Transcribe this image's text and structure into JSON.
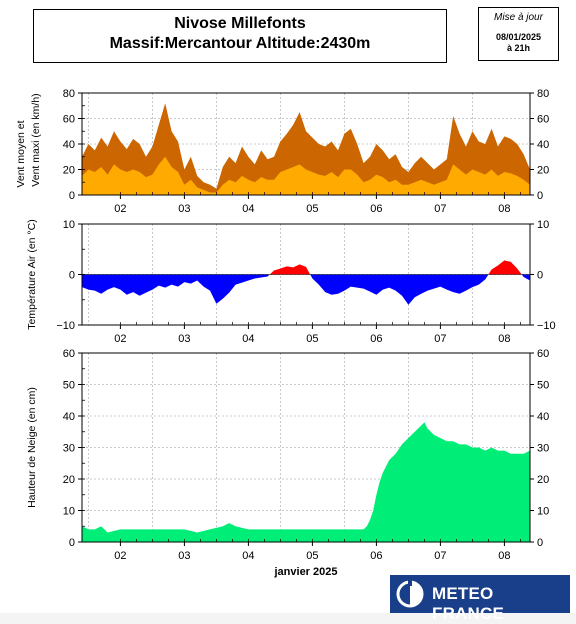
{
  "header": {
    "title_line1": "Nivose Millefonts",
    "title_line2": "Massif:Mercantour Altitude:2430m",
    "issue_label": "Mise à jour",
    "issue_date": "08/01/2025",
    "issue_hour": "à 21h"
  },
  "logo": {
    "text": "METEO FRANCE"
  },
  "colors": {
    "wind_max": "#cc6600",
    "wind_mean": "#ffaa00",
    "temp_positive": "#ff0000",
    "temp_negative": "#0000ff",
    "snow": "#00ee77"
  },
  "chart_data": [
    {
      "id": "wind",
      "type": "area",
      "ylabel_line1": "Vent moyen et",
      "ylabel_line2": "Vent maxi (en km/h)",
      "ylim": [
        0,
        80
      ],
      "yticks": [
        0,
        20,
        40,
        60,
        80
      ],
      "xlim": [
        1.4,
        8.4
      ],
      "x_ticks": [
        2,
        3,
        4,
        5,
        6,
        7,
        8
      ],
      "x_tick_labels": [
        "02",
        "03",
        "04",
        "05",
        "06",
        "07",
        "08"
      ],
      "xlabel": "",
      "grid": true,
      "series": [
        {
          "role": "max",
          "x": [
            1.4,
            1.5,
            1.6,
            1.7,
            1.8,
            1.9,
            2.0,
            2.1,
            2.2,
            2.3,
            2.4,
            2.5,
            2.6,
            2.7,
            2.8,
            2.9,
            3.0,
            3.1,
            3.2,
            3.3,
            3.4,
            3.5,
            3.6,
            3.7,
            3.8,
            3.9,
            4.0,
            4.1,
            4.2,
            4.3,
            4.4,
            4.5,
            4.6,
            4.7,
            4.8,
            4.9,
            5.0,
            5.1,
            5.2,
            5.3,
            5.4,
            5.5,
            5.6,
            5.7,
            5.8,
            5.9,
            6.0,
            6.1,
            6.2,
            6.3,
            6.4,
            6.5,
            6.6,
            6.7,
            6.8,
            6.9,
            7.0,
            7.1,
            7.2,
            7.3,
            7.4,
            7.5,
            7.6,
            7.7,
            7.8,
            7.9,
            8.0,
            8.1,
            8.2,
            8.3,
            8.4
          ],
          "values": [
            30,
            40,
            35,
            45,
            38,
            50,
            42,
            36,
            44,
            40,
            30,
            38,
            55,
            72,
            50,
            42,
            20,
            30,
            15,
            10,
            8,
            5,
            22,
            30,
            25,
            38,
            30,
            24,
            35,
            28,
            30,
            42,
            48,
            55,
            65,
            50,
            45,
            40,
            38,
            42,
            35,
            48,
            52,
            40,
            25,
            30,
            40,
            35,
            28,
            32,
            22,
            18,
            25,
            30,
            25,
            20,
            24,
            28,
            62,
            48,
            38,
            50,
            42,
            40,
            52,
            38,
            46,
            44,
            40,
            32,
            20
          ]
        },
        {
          "role": "mean",
          "x": [
            1.4,
            1.5,
            1.6,
            1.7,
            1.8,
            1.9,
            2.0,
            2.1,
            2.2,
            2.3,
            2.4,
            2.5,
            2.6,
            2.7,
            2.8,
            2.9,
            3.0,
            3.1,
            3.2,
            3.3,
            3.4,
            3.5,
            3.6,
            3.7,
            3.8,
            3.9,
            4.0,
            4.1,
            4.2,
            4.3,
            4.4,
            4.5,
            4.6,
            4.7,
            4.8,
            4.9,
            5.0,
            5.1,
            5.2,
            5.3,
            5.4,
            5.5,
            5.6,
            5.7,
            5.8,
            5.9,
            6.0,
            6.1,
            6.2,
            6.3,
            6.4,
            6.5,
            6.6,
            6.7,
            6.8,
            6.9,
            7.0,
            7.1,
            7.2,
            7.3,
            7.4,
            7.5,
            7.6,
            7.7,
            7.8,
            7.9,
            8.0,
            8.1,
            8.2,
            8.3,
            8.4
          ],
          "values": [
            15,
            20,
            18,
            22,
            16,
            24,
            20,
            18,
            20,
            18,
            14,
            16,
            24,
            30,
            22,
            18,
            8,
            12,
            6,
            4,
            2,
            2,
            8,
            12,
            10,
            15,
            12,
            10,
            14,
            12,
            12,
            18,
            20,
            22,
            24,
            20,
            18,
            16,
            15,
            18,
            14,
            20,
            20,
            16,
            10,
            12,
            16,
            14,
            10,
            12,
            8,
            8,
            10,
            12,
            10,
            8,
            10,
            12,
            24,
            20,
            16,
            20,
            18,
            16,
            20,
            15,
            18,
            17,
            15,
            12,
            8
          ]
        }
      ]
    },
    {
      "id": "temperature",
      "type": "area",
      "ylabel": "Température Air (en °C)",
      "ylim": [
        -10,
        10
      ],
      "yticks": [
        -10,
        0,
        10
      ],
      "xlim": [
        1.4,
        8.4
      ],
      "x_ticks": [
        2,
        3,
        4,
        5,
        6,
        7,
        8
      ],
      "x_tick_labels": [
        "02",
        "03",
        "04",
        "05",
        "06",
        "07",
        "08"
      ],
      "xlabel": "",
      "grid": true,
      "series": [
        {
          "x": [
            1.4,
            1.5,
            1.6,
            1.7,
            1.8,
            1.9,
            2.0,
            2.1,
            2.2,
            2.3,
            2.4,
            2.5,
            2.6,
            2.7,
            2.8,
            2.9,
            3.0,
            3.1,
            3.2,
            3.3,
            3.4,
            3.5,
            3.6,
            3.7,
            3.8,
            3.9,
            4.0,
            4.1,
            4.2,
            4.3,
            4.4,
            4.5,
            4.6,
            4.7,
            4.8,
            4.9,
            5.0,
            5.1,
            5.2,
            5.3,
            5.4,
            5.5,
            5.6,
            5.7,
            5.8,
            5.9,
            6.0,
            6.1,
            6.2,
            6.3,
            6.4,
            6.5,
            6.6,
            6.7,
            6.8,
            6.9,
            7.0,
            7.1,
            7.2,
            7.3,
            7.4,
            7.5,
            7.6,
            7.7,
            7.8,
            7.9,
            8.0,
            8.1,
            8.2,
            8.3,
            8.4
          ],
          "values": [
            -2.5,
            -3.0,
            -3.2,
            -3.8,
            -3.0,
            -2.5,
            -3.0,
            -4.0,
            -3.5,
            -4.2,
            -3.6,
            -3.0,
            -2.2,
            -2.6,
            -2.0,
            -2.4,
            -1.5,
            -1.8,
            -1.2,
            -2.4,
            -3.2,
            -5.8,
            -4.8,
            -3.6,
            -2.0,
            -1.6,
            -1.2,
            -0.8,
            -0.6,
            -0.4,
            0.8,
            1.2,
            1.6,
            1.4,
            2.0,
            1.5,
            -0.8,
            -2.0,
            -3.5,
            -4.0,
            -3.8,
            -3.2,
            -2.4,
            -2.6,
            -2.8,
            -3.4,
            -4.0,
            -3.0,
            -2.6,
            -3.2,
            -4.2,
            -6.0,
            -4.5,
            -3.8,
            -3.2,
            -2.8,
            -2.4,
            -3.0,
            -3.5,
            -3.8,
            -3.2,
            -2.5,
            -2.0,
            -1.0,
            1.0,
            1.8,
            2.8,
            2.5,
            1.2,
            -0.5,
            -1.2
          ]
        }
      ]
    },
    {
      "id": "snow",
      "type": "area",
      "ylabel": "Hauteur de Neige (en cm)",
      "ylim": [
        0,
        60
      ],
      "yticks": [
        0,
        10,
        20,
        30,
        40,
        50,
        60
      ],
      "xlim": [
        1.4,
        8.4
      ],
      "x_ticks": [
        2,
        3,
        4,
        5,
        6,
        7,
        8
      ],
      "x_tick_labels": [
        "02",
        "03",
        "04",
        "05",
        "06",
        "07",
        "08"
      ],
      "xlabel": "janvier 2025",
      "grid": true,
      "series": [
        {
          "x": [
            1.4,
            1.5,
            1.6,
            1.7,
            1.8,
            2.0,
            2.2,
            2.4,
            2.6,
            2.8,
            3.0,
            3.2,
            3.4,
            3.6,
            3.7,
            3.8,
            4.0,
            4.2,
            4.4,
            4.6,
            4.8,
            5.0,
            5.2,
            5.4,
            5.6,
            5.8,
            5.85,
            5.9,
            5.95,
            6.0,
            6.05,
            6.1,
            6.2,
            6.3,
            6.4,
            6.5,
            6.6,
            6.7,
            6.75,
            6.8,
            6.9,
            7.0,
            7.1,
            7.2,
            7.3,
            7.4,
            7.5,
            7.6,
            7.7,
            7.8,
            7.9,
            8.0,
            8.1,
            8.2,
            8.3,
            8.4
          ],
          "values": [
            5,
            4,
            4,
            5,
            3,
            4,
            4,
            4,
            4,
            4,
            4,
            3,
            4,
            5,
            6,
            5,
            4,
            4,
            4,
            4,
            4,
            4,
            4,
            4,
            4,
            4,
            5,
            7,
            10,
            15,
            19,
            22,
            26,
            28,
            31,
            33,
            35,
            37,
            38,
            36,
            34,
            33,
            32,
            32,
            31,
            31,
            30,
            30,
            29,
            30,
            29,
            29,
            28,
            28,
            28,
            29
          ]
        }
      ]
    }
  ]
}
